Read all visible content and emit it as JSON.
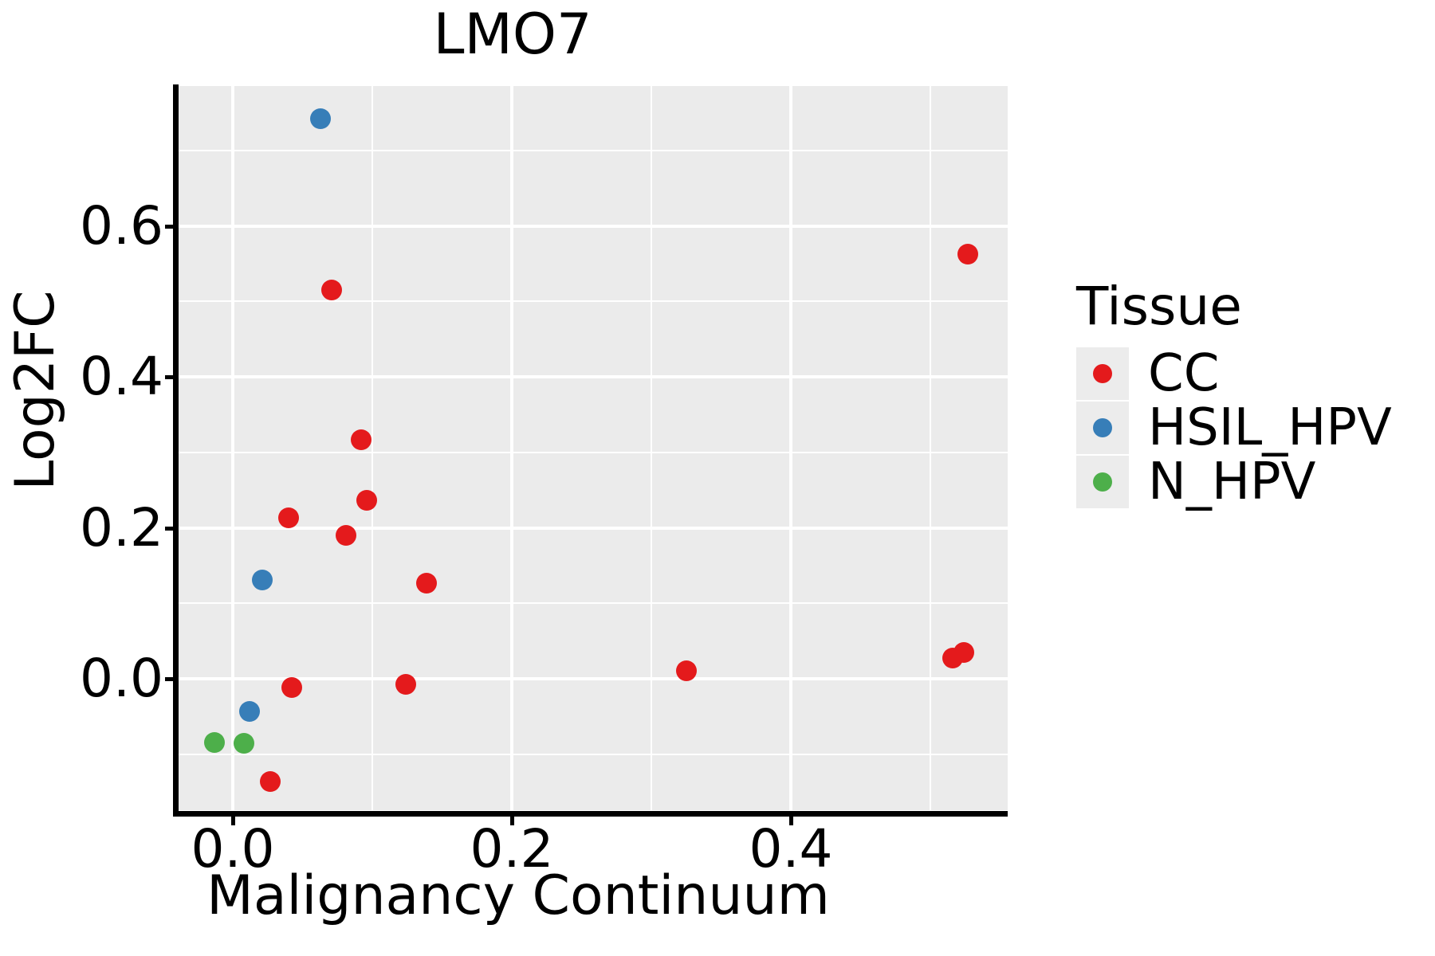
{
  "title": "LMO7",
  "axes": {
    "x": {
      "label": "Malignancy Continuum",
      "tick_labels": [
        "0.0",
        "0.2",
        "0.4"
      ],
      "tick_values": [
        0.0,
        0.2,
        0.4
      ]
    },
    "y": {
      "label": "Log2FC",
      "tick_labels": [
        "0.0",
        "0.2",
        "0.4",
        "0.6"
      ],
      "tick_values": [
        0.0,
        0.2,
        0.4,
        0.6
      ]
    }
  },
  "legend": {
    "title": "Tissue",
    "items": [
      {
        "label": "CC",
        "color": "#E41A1C"
      },
      {
        "label": "HSIL_HPV",
        "color": "#377EB8"
      },
      {
        "label": "N_HPV",
        "color": "#4DAF4A"
      }
    ]
  },
  "colors": {
    "panel_background": "#EBEBEB",
    "gridline": "#FFFFFF",
    "axis": "#000000",
    "cc_red": "#E41A1C",
    "hsil_blue": "#377EB8",
    "nhpv_green": "#4DAF4A"
  },
  "chart_data": {
    "type": "scatter",
    "title": "LMO7",
    "xlabel": "Malignancy Continuum",
    "ylabel": "Log2FC",
    "xlim": [
      -0.039,
      0.554
    ],
    "ylim": [
      -0.174,
      0.785
    ],
    "grid": "on",
    "legend_position": "right",
    "x_major_gridlines": [
      0.0,
      0.2,
      0.4
    ],
    "x_minor_gridlines": [
      0.1,
      0.3,
      0.5
    ],
    "y_major_gridlines": [
      0.0,
      0.2,
      0.4,
      0.6
    ],
    "y_minor_gridlines": [
      -0.1,
      0.1,
      0.3,
      0.5,
      0.7
    ],
    "series": [
      {
        "name": "CC",
        "color": "#E41A1C",
        "points": [
          [
            0.527,
            0.563
          ],
          [
            0.071,
            0.515
          ],
          [
            0.092,
            0.317
          ],
          [
            0.096,
            0.236
          ],
          [
            0.04,
            0.213
          ],
          [
            0.081,
            0.19
          ],
          [
            0.139,
            0.127
          ],
          [
            0.325,
            0.011
          ],
          [
            0.516,
            0.027
          ],
          [
            0.524,
            0.035
          ],
          [
            0.124,
            -0.007
          ],
          [
            0.042,
            -0.012
          ],
          [
            0.027,
            -0.136
          ]
        ]
      },
      {
        "name": "HSIL_HPV",
        "color": "#377EB8",
        "points": [
          [
            0.063,
            0.742
          ],
          [
            0.021,
            0.131
          ],
          [
            0.012,
            -0.043
          ]
        ]
      },
      {
        "name": "N_HPV",
        "color": "#4DAF4A",
        "points": [
          [
            -0.013,
            -0.084
          ],
          [
            0.008,
            -0.086
          ]
        ]
      }
    ]
  }
}
